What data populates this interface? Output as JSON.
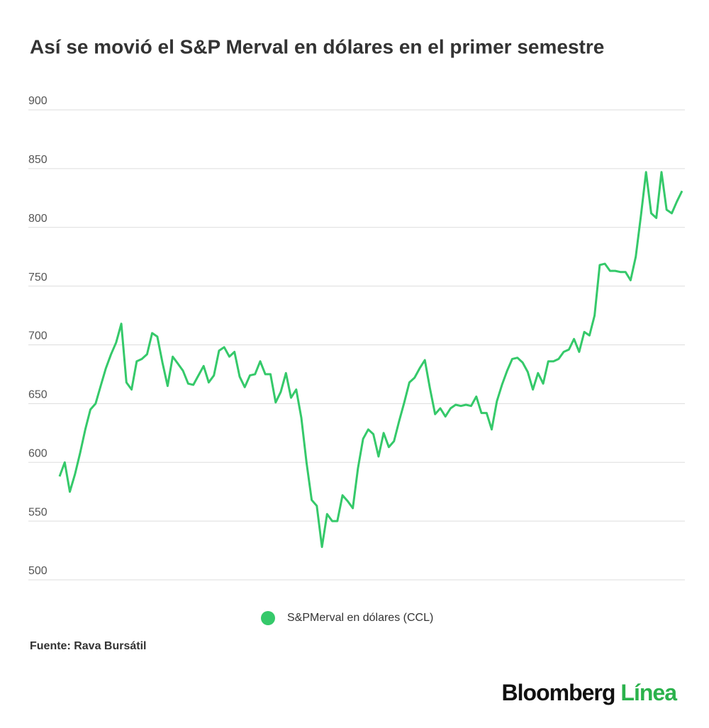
{
  "chart_data": {
    "type": "line",
    "title": "Así se movió el S&P Merval en dólares en el primer semestre",
    "series": [
      {
        "name": "S&PMerval en dólares (CCL)",
        "color": "#35c96a",
        "values": [
          588,
          600,
          575,
          590,
          608,
          628,
          645,
          650,
          665,
          680,
          692,
          702,
          718,
          668,
          662,
          686,
          688,
          692,
          710,
          707,
          685,
          665,
          690,
          684,
          678,
          667,
          666,
          674,
          682,
          668,
          674,
          695,
          698,
          690,
          694,
          673,
          664,
          674,
          675,
          686,
          675,
          675,
          651,
          660,
          676,
          655,
          662,
          638,
          600,
          568,
          563,
          528,
          556,
          550,
          550,
          572,
          567,
          561,
          595,
          620,
          628,
          624,
          605,
          625,
          613,
          618,
          635,
          651,
          668,
          672,
          680,
          687,
          663,
          641,
          646,
          639,
          646,
          649,
          648,
          649,
          648,
          656,
          642,
          642,
          628,
          652,
          666,
          678,
          688,
          689,
          685,
          677,
          662,
          676,
          667,
          686,
          686,
          688,
          694,
          696,
          705,
          694,
          711,
          708,
          725,
          768,
          769,
          763,
          763,
          762,
          762,
          755,
          775,
          810,
          847,
          812,
          808,
          847,
          815,
          812,
          822,
          831
        ]
      }
    ],
    "ylim": [
      500,
      900
    ],
    "yticks": [
      500,
      550,
      600,
      650,
      700,
      750,
      800,
      850,
      900
    ],
    "grid": true,
    "source": "Fuente: Rava Bursátil"
  },
  "branding": {
    "brand": "Bloomberg",
    "sub": "Línea"
  }
}
